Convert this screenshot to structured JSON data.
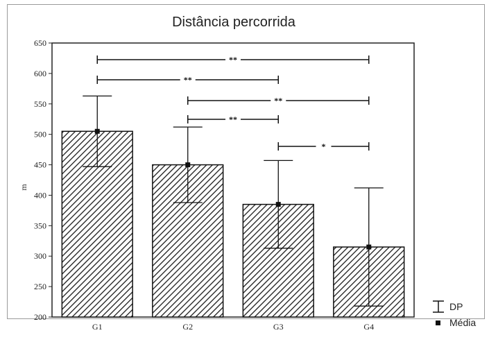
{
  "chart_data": {
    "type": "bar",
    "title": "Distância percorrida",
    "xlabel": "",
    "ylabel": "m",
    "categories": [
      "G1",
      "G2",
      "G3",
      "G4"
    ],
    "series": [
      {
        "values": [
          505,
          450,
          385,
          315
        ],
        "sd": [
          58,
          62,
          72,
          97
        ]
      }
    ],
    "ylim": [
      200,
      650
    ],
    "yticks": [
      200,
      250,
      300,
      350,
      400,
      450,
      500,
      550,
      600,
      650
    ],
    "grid": false,
    "bar_pattern": "diagonal-hatch",
    "comparisons": [
      {
        "from": "G1",
        "to": "G4",
        "label": "**"
      },
      {
        "from": "G1",
        "to": "G3",
        "label": "**"
      },
      {
        "from": "G2",
        "to": "G4",
        "label": "**"
      },
      {
        "from": "G2",
        "to": "G3",
        "label": "**"
      },
      {
        "from": "G3",
        "to": "G4",
        "label": "*"
      }
    ],
    "legend": {
      "placement": "bottom-right",
      "items": [
        {
          "symbol": "error-bar",
          "label": "DP"
        },
        {
          "symbol": "square",
          "label": "Média"
        }
      ]
    }
  }
}
